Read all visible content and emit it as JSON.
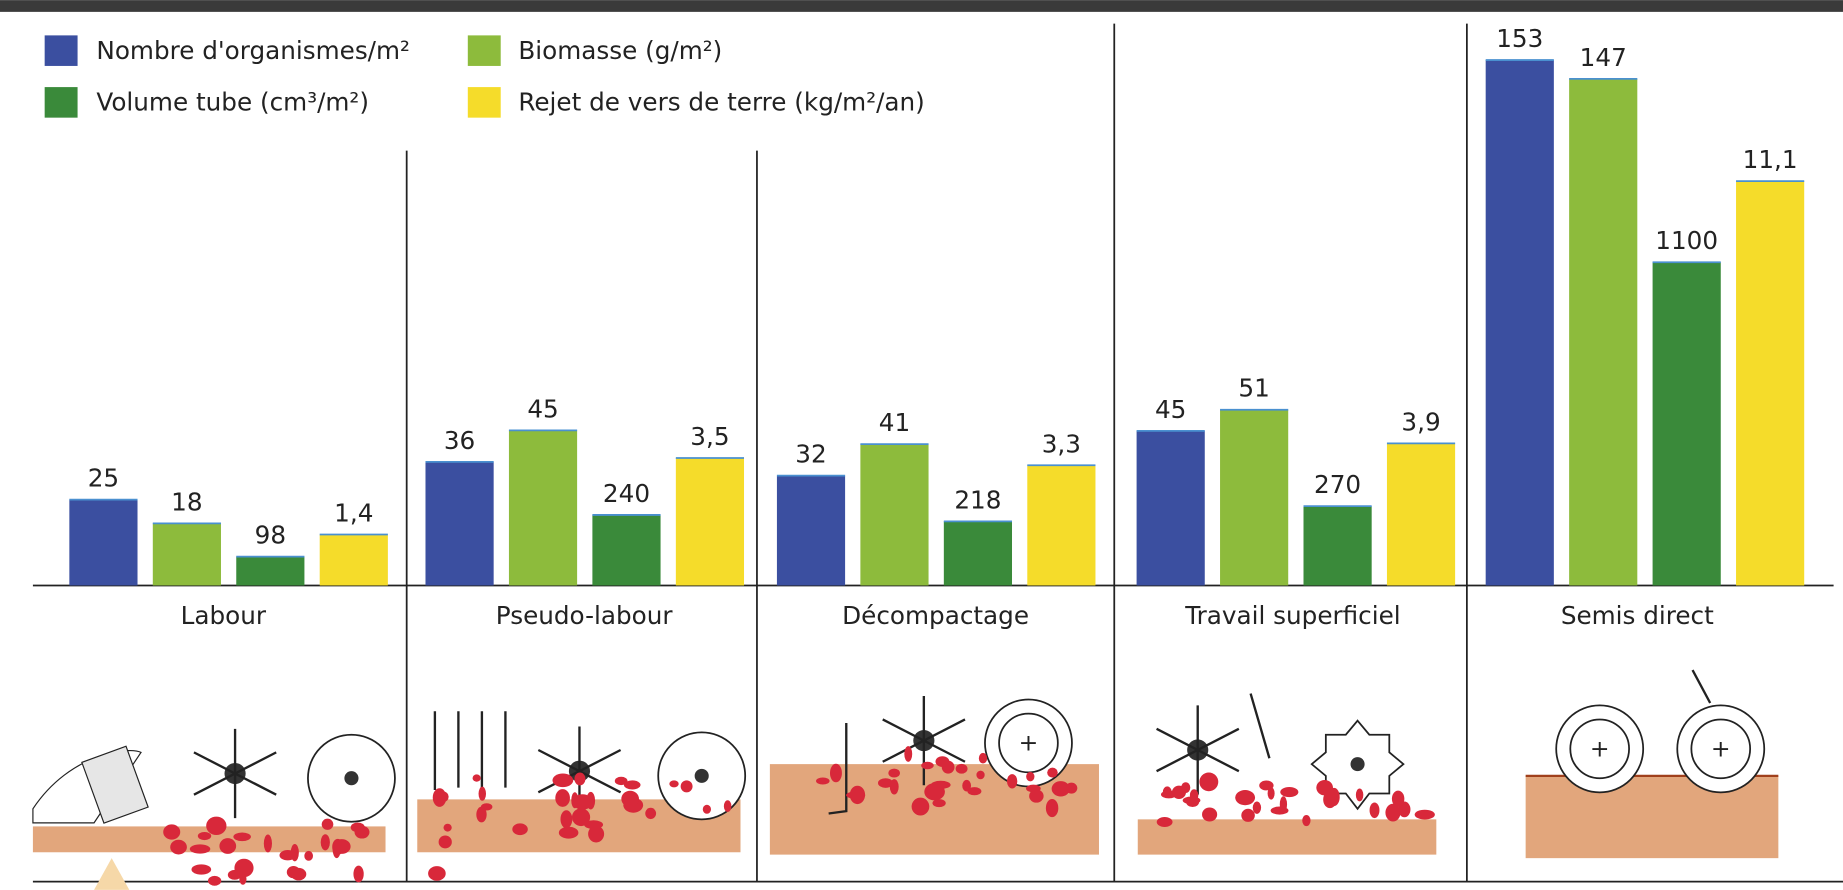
{
  "chart_data": {
    "type": "bar",
    "categories": [
      "Labour",
      "Pseudo-labour",
      "Décompactage",
      "Travail superficiel",
      "Semis direct"
    ],
    "series": [
      {
        "name": "Nombre d'organismes/m²",
        "color": "#3b4fa0",
        "values": [
          25,
          36,
          32,
          45,
          153
        ]
      },
      {
        "name": "Biomasse (g/m²)",
        "color": "#8dbb3c",
        "values": [
          18,
          45,
          41,
          51,
          147
        ]
      },
      {
        "name": "Volume tube (cm³/m²)",
        "color": "#3a8a3a",
        "values": [
          98,
          240,
          218,
          270,
          1100
        ]
      },
      {
        "name": "Rejet de vers de terre (kg/m²/an)",
        "color": "#f5dc2a",
        "values": [
          1.4,
          3.5,
          3.3,
          3.9,
          11.1
        ],
        "value_labels": [
          "1,4",
          "3,5",
          "3,3",
          "3,9",
          "11,1"
        ]
      }
    ]
  }
}
